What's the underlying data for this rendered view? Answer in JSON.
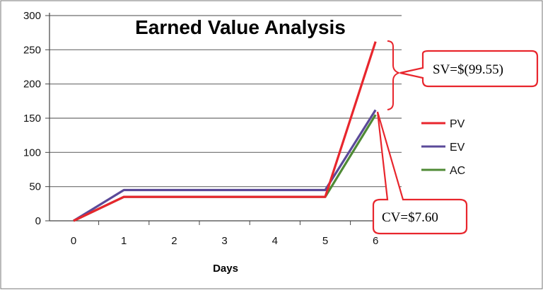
{
  "chart_data": {
    "type": "line",
    "title": "Earned Value Analysis",
    "xlabel": "Days",
    "ylabel": "",
    "x": [
      0,
      1,
      2,
      3,
      4,
      5,
      6
    ],
    "ylim": [
      0,
      300
    ],
    "yticks": [
      0,
      50,
      100,
      150,
      200,
      250,
      300
    ],
    "grid": true,
    "legend_position": "right",
    "series": [
      {
        "name": "PV",
        "color": "#e8262d",
        "values": [
          0,
          35,
          35,
          35,
          35,
          35,
          262
        ]
      },
      {
        "name": "EV",
        "color": "#5b4a99",
        "values": [
          0,
          45,
          45,
          45,
          45,
          45,
          162
        ]
      },
      {
        "name": "AC",
        "color": "#4f8a35",
        "values": [
          0,
          35,
          35,
          35,
          35,
          35,
          155
        ]
      }
    ],
    "annotations": {
      "sv": "SV=$(99.55)",
      "cv": "CV=$7.60"
    }
  }
}
